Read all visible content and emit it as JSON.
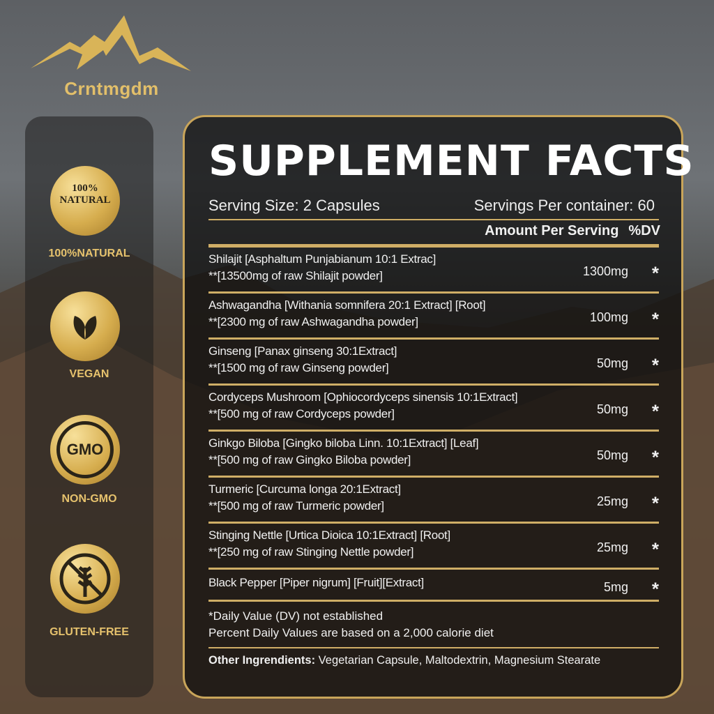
{
  "brand": {
    "name": "Crntmgdm"
  },
  "badges": [
    {
      "icon": "natural-leaf-icon",
      "seal_text": "100% NATURAL",
      "label": "100%NATURAL"
    },
    {
      "icon": "vegan-leaf-icon",
      "label": "VEGAN"
    },
    {
      "icon": "no-gmo-icon",
      "seal_text": "GMO",
      "label": "NON-GMO"
    },
    {
      "icon": "no-gluten-wheat-icon",
      "label": "GLUTEN-FREE"
    }
  ],
  "facts": {
    "title": "SUPPLEMENT FACTS",
    "serving_size": "Serving Size: 2 Capsules",
    "servings_per_container": "Servings Per container: 60",
    "amount_header": "Amount Per Serving",
    "dv_header": "%DV",
    "rows": [
      {
        "line1": "Shilajit [Asphaltum Punjabianum 10:1 Extrac]",
        "line2": "**[13500mg of raw Shilajit powder]",
        "amount": "1300mg",
        "dv": "*"
      },
      {
        "line1": "Ashwagandha [Withania somnifera 20:1 Extract] [Root]",
        "line2": "**[2300 mg of raw Ashwagandha powder]",
        "amount": "100mg",
        "dv": "*"
      },
      {
        "line1": "Ginseng [Panax ginseng 30:1Extract]",
        "line2": "**[1500 mg of raw Ginseng powder]",
        "amount": "50mg",
        "dv": "*"
      },
      {
        "line1": "Cordyceps Mushroom [Ophiocordyceps sinensis 10:1Extract]",
        "line2": "**[500 mg of raw Cordyceps powder]",
        "amount": "50mg",
        "dv": "*"
      },
      {
        "line1": "Ginkgo Biloba [Gingko biloba Linn. 10:1Extract] [Leaf]",
        "line2": "**[500 mg of raw Gingko Biloba powder]",
        "amount": "50mg",
        "dv": "*"
      },
      {
        "line1": "Turmeric [Curcuma longa 20:1Extract]",
        "line2": "**[500 mg of raw Turmeric powder]",
        "amount": "25mg",
        "dv": "*"
      },
      {
        "line1": "Stinging Nettle [Urtica Dioica 10:1Extract] [Root]",
        "line2": "**[250 mg of raw Stinging Nettle powder]",
        "amount": "25mg",
        "dv": "*"
      },
      {
        "line1": "Black Pepper [Piper nigrum] [Fruit][Extract]",
        "line2": "",
        "amount": "5mg",
        "dv": "*"
      }
    ],
    "footnote1": "*Daily Value (DV) not established",
    "footnote2": "Percent Daily Values are based on a 2,000 calorie diet",
    "other_label": "Other  Ingrendients:",
    "other_value": " Vegetarian Capsule, Maltodextrin, Magnesium Stearate"
  },
  "colors": {
    "gold": "#cfae66",
    "panel": "#0c0c0c"
  }
}
